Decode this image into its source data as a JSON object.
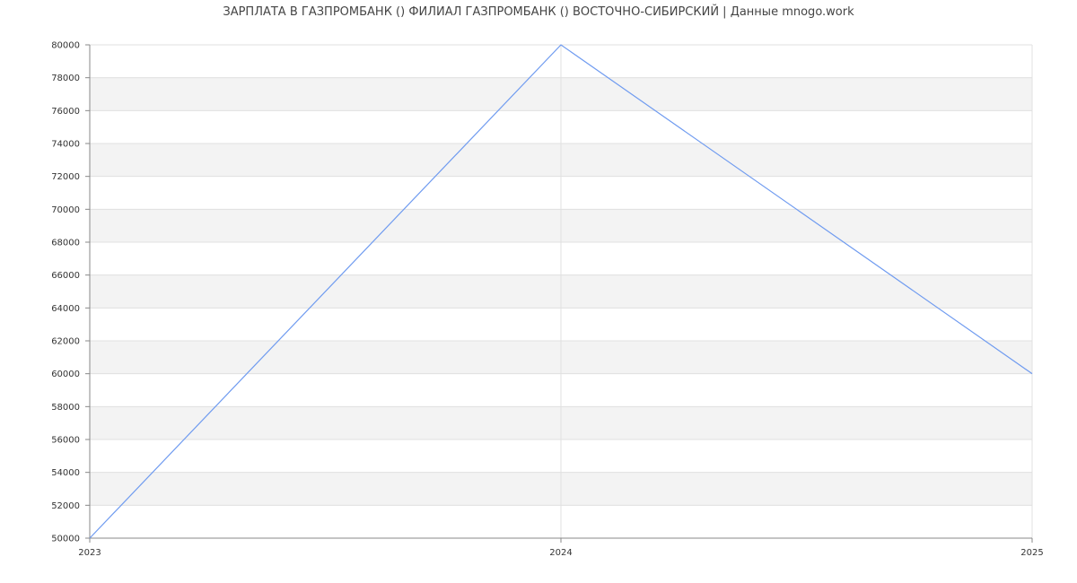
{
  "chart_data": {
    "type": "line",
    "title": "ЗАРПЛАТА В ГАЗПРОМБАНК () ФИЛИАЛ ГАЗПРОМБАНК () ВОСТОЧНО-СИБИРСКИЙ | Данные mnogo.work",
    "xlabel": "",
    "ylabel": "",
    "x": [
      "2023",
      "2024",
      "2025"
    ],
    "series": [
      {
        "values": [
          50000,
          80000,
          60000
        ]
      }
    ],
    "ylim": [
      50000,
      80000
    ],
    "yticks": [
      50000,
      52000,
      54000,
      56000,
      58000,
      60000,
      62000,
      64000,
      66000,
      68000,
      70000,
      72000,
      74000,
      76000,
      78000,
      80000
    ],
    "grid": true,
    "banded_background": true,
    "colors": {
      "line": "#6f9bf0",
      "band": "#f3f3f3",
      "grid": "#e0e0e0",
      "axis": "#888888"
    }
  }
}
